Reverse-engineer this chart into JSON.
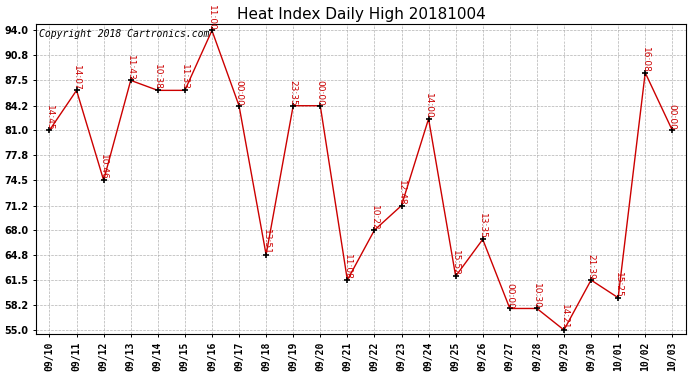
{
  "title": "Heat Index Daily High 20181004",
  "copyright": "Copyright 2018 Cartronics.com",
  "legend_bg": "#cc0000",
  "legend_fg": "#ffffff",
  "background_color": "#ffffff",
  "line_color": "#cc0000",
  "marker_color": "#000000",
  "label_color": "#cc0000",
  "grid_color": "#aaaaaa",
  "dates": [
    "09/10",
    "09/11",
    "09/12",
    "09/13",
    "09/14",
    "09/15",
    "09/16",
    "09/17",
    "09/18",
    "09/19",
    "09/20",
    "09/21",
    "09/22",
    "09/23",
    "09/24",
    "09/25",
    "09/26",
    "09/27",
    "09/28",
    "09/29",
    "09/30",
    "10/01",
    "10/02",
    "10/03"
  ],
  "values": [
    81.0,
    86.2,
    74.5,
    87.5,
    86.2,
    86.2,
    94.0,
    84.2,
    64.8,
    84.2,
    84.2,
    61.5,
    68.0,
    71.2,
    82.5,
    62.0,
    66.8,
    57.8,
    57.8,
    55.0,
    61.5,
    59.2,
    88.5,
    81.0
  ],
  "time_labels": [
    "14:45",
    "14:07",
    "10:46",
    "11:43",
    "10:38",
    "11:33",
    "11:00",
    "00:00",
    "13:51",
    "23:35",
    "00:00",
    "11:08",
    "10:22",
    "12:48",
    "14:00",
    "15:52",
    "13:35",
    "00:00",
    "10:30",
    "14:21",
    "21:39",
    "15:25",
    "16:08",
    "00:00"
  ],
  "ylim_min": 54.5,
  "ylim_max": 94.8,
  "ytick_values": [
    55.0,
    58.2,
    61.5,
    64.8,
    68.0,
    71.2,
    74.5,
    77.8,
    81.0,
    84.2,
    87.5,
    90.8,
    94.0
  ],
  "title_fontsize": 11,
  "label_fontsize": 6.5,
  "tick_fontsize": 7,
  "copyright_fontsize": 7
}
